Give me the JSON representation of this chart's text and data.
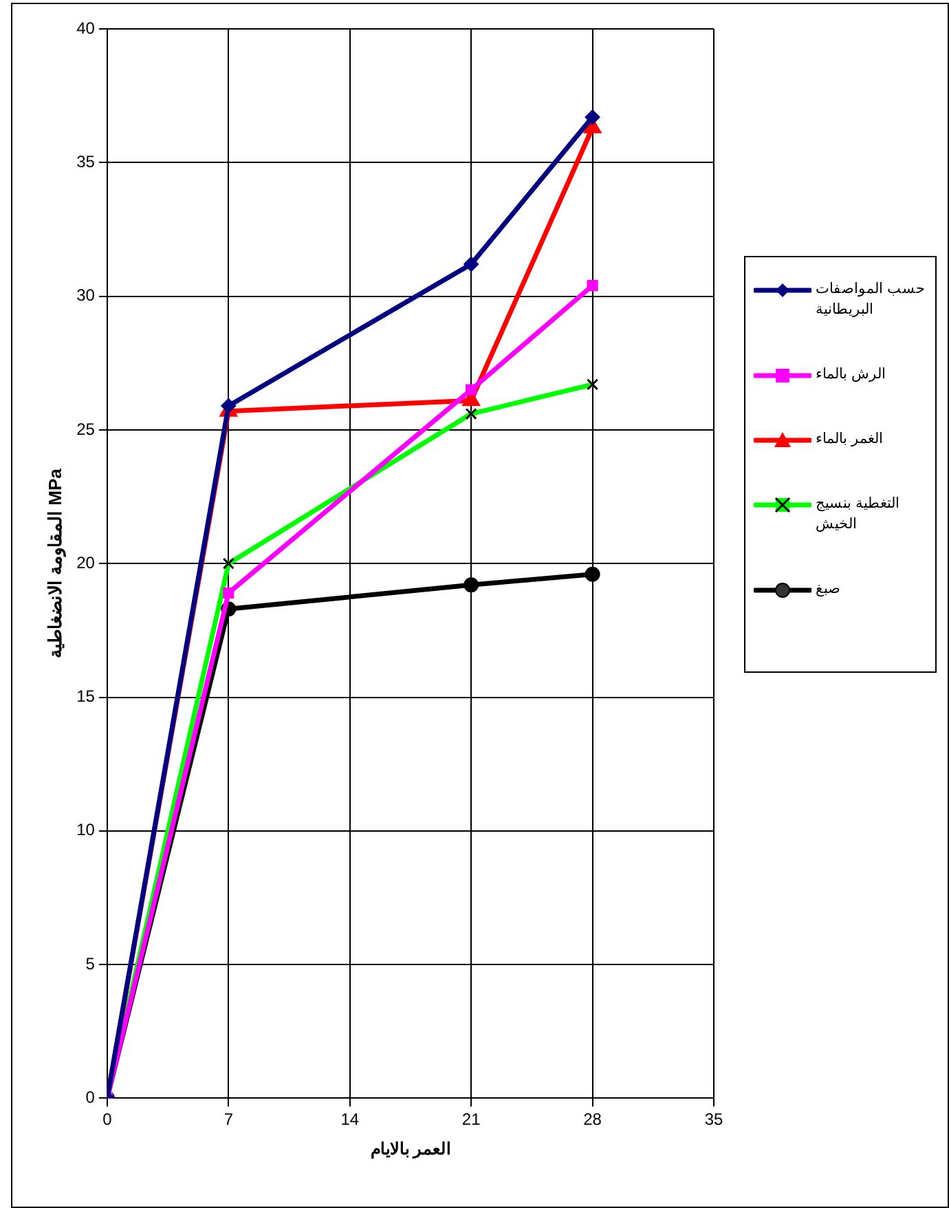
{
  "chart_data": {
    "type": "line",
    "xlabel": "العمر بالايام",
    "ylabel": "المقاومة الانضغاطية MPa",
    "x": [
      0,
      7,
      21,
      28
    ],
    "xlim": [
      0,
      35
    ],
    "xticks": [
      0,
      7,
      14,
      21,
      28,
      35
    ],
    "ylim": [
      0,
      40
    ],
    "yticks": [
      0,
      5,
      10,
      15,
      20,
      25,
      30,
      35,
      40
    ],
    "grid": true,
    "legend": "right",
    "line_style": "solid",
    "series": [
      {
        "name": "حسب المواصفات البريطانية",
        "color": "#000080",
        "marker": "diamond",
        "values": [
          0,
          25.9,
          31.2,
          36.7
        ]
      },
      {
        "name": "الرش بالماء",
        "color": "#ff00ff",
        "marker": "square",
        "values": [
          0,
          18.9,
          26.5,
          30.4
        ]
      },
      {
        "name": "الغمر بالماء",
        "color": "#ff0000",
        "marker": "triangle",
        "values": [
          0,
          25.7,
          26.1,
          36.3
        ]
      },
      {
        "name": "التغطية بنسيج الخيش",
        "color": "#00ff00",
        "marker": "cross",
        "values": [
          0,
          20.0,
          25.6,
          26.7
        ]
      },
      {
        "name": "صبغ",
        "color": "#000000",
        "marker": "circle",
        "values": [
          0,
          18.3,
          19.2,
          19.6
        ]
      }
    ]
  }
}
